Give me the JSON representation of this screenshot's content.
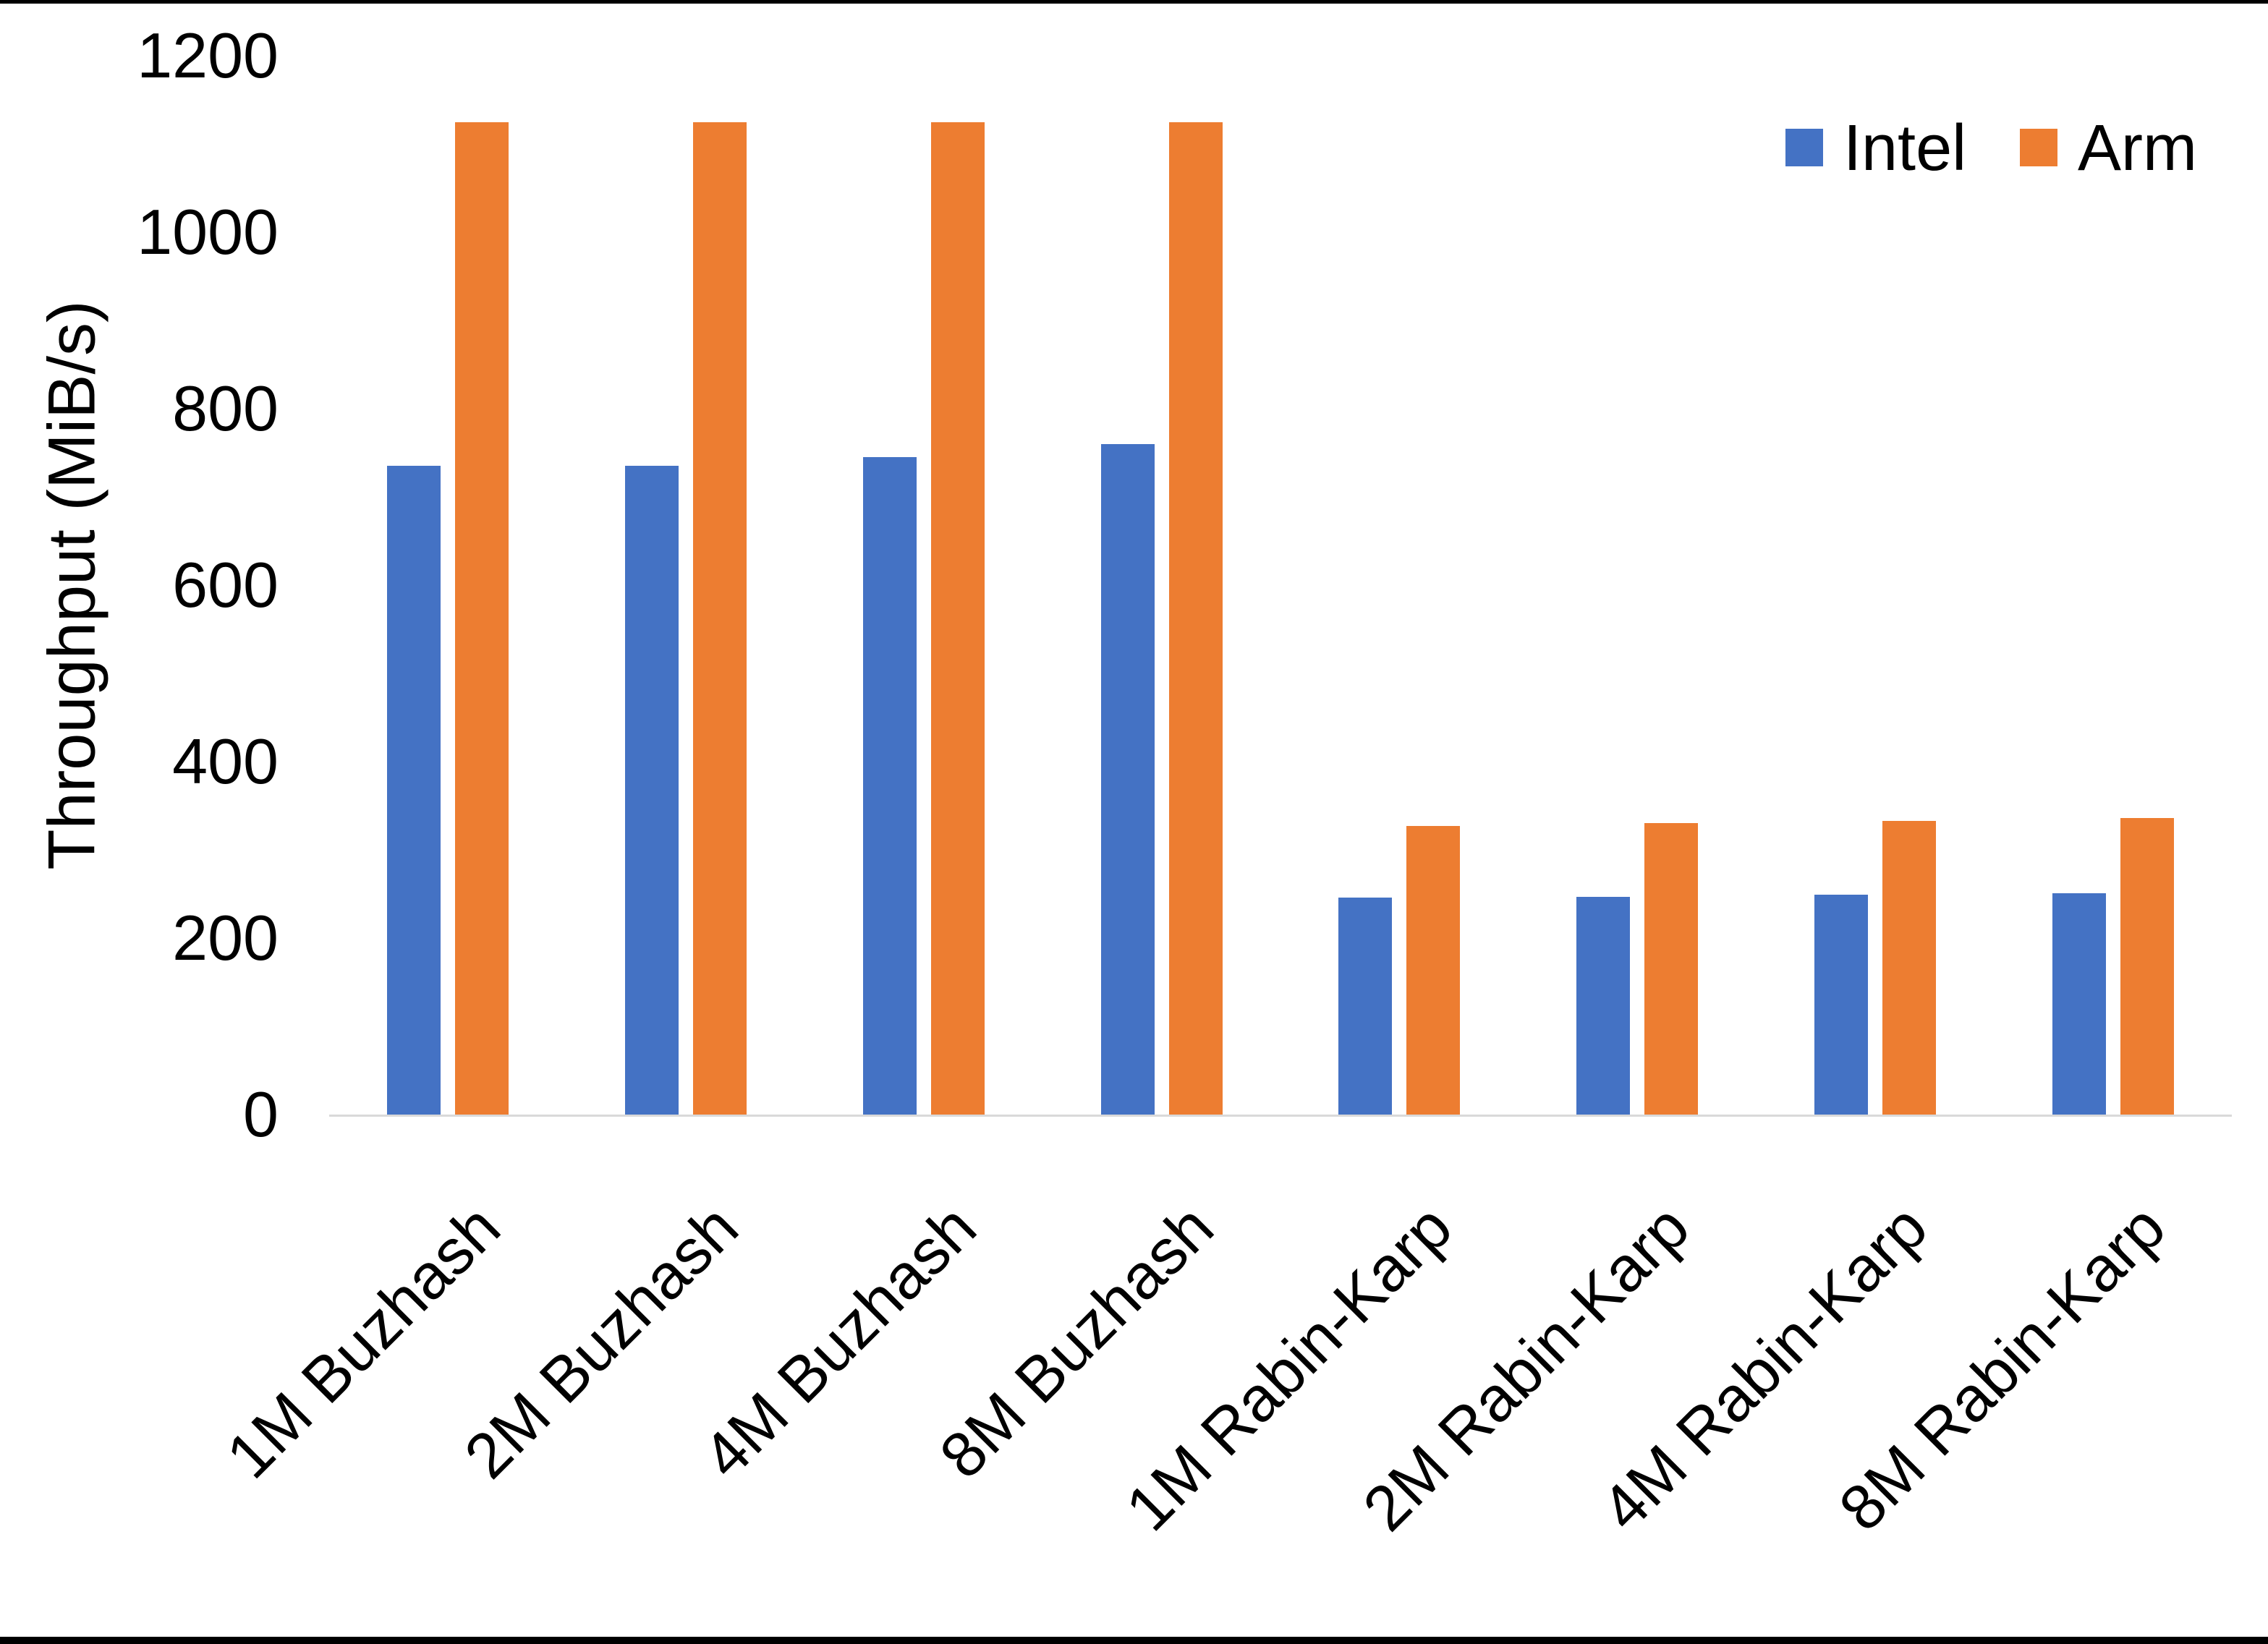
{
  "chart_data": {
    "type": "bar",
    "title": "",
    "categories": [
      "1M Buzhash",
      "2M Buzhash",
      "4M Buzhash",
      "8M Buzhash",
      "1M Rabin-Karp",
      "2M Rabin-Karp",
      "4M Rabin-Karp",
      "8M Rabin-Karp"
    ],
    "series": [
      {
        "name": "Intel",
        "color": "#4472C4",
        "values": [
          735,
          735,
          745,
          760,
          246,
          247,
          249,
          251
        ]
      },
      {
        "name": "Arm",
        "color": "#ED7D31",
        "values": [
          1125,
          1125,
          1125,
          1125,
          327,
          330,
          333,
          336
        ]
      }
    ],
    "xlabel": "",
    "ylabel": "Throughput (MiB/s)",
    "ylim": [
      0,
      1200
    ],
    "ytick_step": 200,
    "yticks": [
      "0",
      "200",
      "400",
      "600",
      "800",
      "1000",
      "1200"
    ],
    "grid": false,
    "legend_position": "top-right",
    "x_label_rotation_deg": 45
  },
  "colors": {
    "background": "#FFFFFF",
    "text": "#000000",
    "axis_line": "#D9D9D9",
    "frame": "#000000",
    "intel": "#4472C4",
    "arm": "#ED7D31"
  }
}
